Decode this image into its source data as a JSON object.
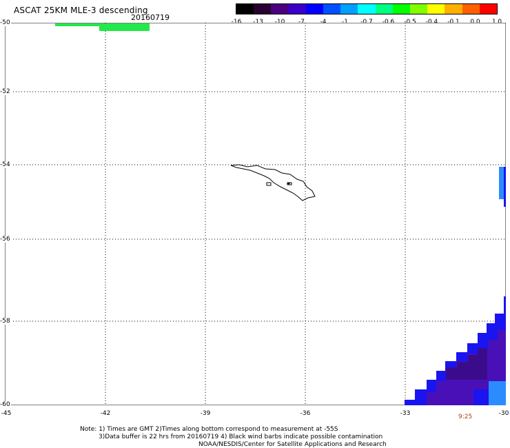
{
  "header": {
    "title": "ASCAT 25KM MLE-3 descending",
    "date": "20160719"
  },
  "colorbar": {
    "labels": [
      "-16",
      "-13",
      "-10",
      "-7",
      "-4",
      "-1",
      "-0.7",
      "-0.6",
      "-0.5",
      "-0.4",
      "-0.1",
      "0.0",
      "1.0"
    ],
    "colors": [
      "#000000",
      "#2a0030",
      "#4b0080",
      "#3a00c8",
      "#0000ff",
      "#0050ff",
      "#00a0ff",
      "#00ffff",
      "#00ff80",
      "#00ff00",
      "#80ff00",
      "#ffff00",
      "#ffb000",
      "#ff6000",
      "#ff0000"
    ]
  },
  "axes": {
    "lon_ticks": [
      "-45",
      "-42",
      "-39",
      "-36",
      "-33",
      "-30"
    ],
    "lat_ticks": [
      "-50",
      "-52",
      "-54",
      "-56",
      "-58",
      "-60"
    ]
  },
  "time_label": "9:25",
  "notes": {
    "line1": "Note: 1) Times are GMT 2)Times along bottom correspond to measurement at -55S",
    "line2": "3)Data buffer is 22 hrs from 20160719 4) Black wind barbs indicate possible contamination",
    "line3": "NOAA/NESDIS/Center for Satellite Applications and Research"
  },
  "swath_colors": {
    "green": "#22e84a",
    "blue": "#1a14f0",
    "light_blue": "#2a8cff",
    "purple": "#4a10b8",
    "dark_purple": "#3a0c8c"
  }
}
